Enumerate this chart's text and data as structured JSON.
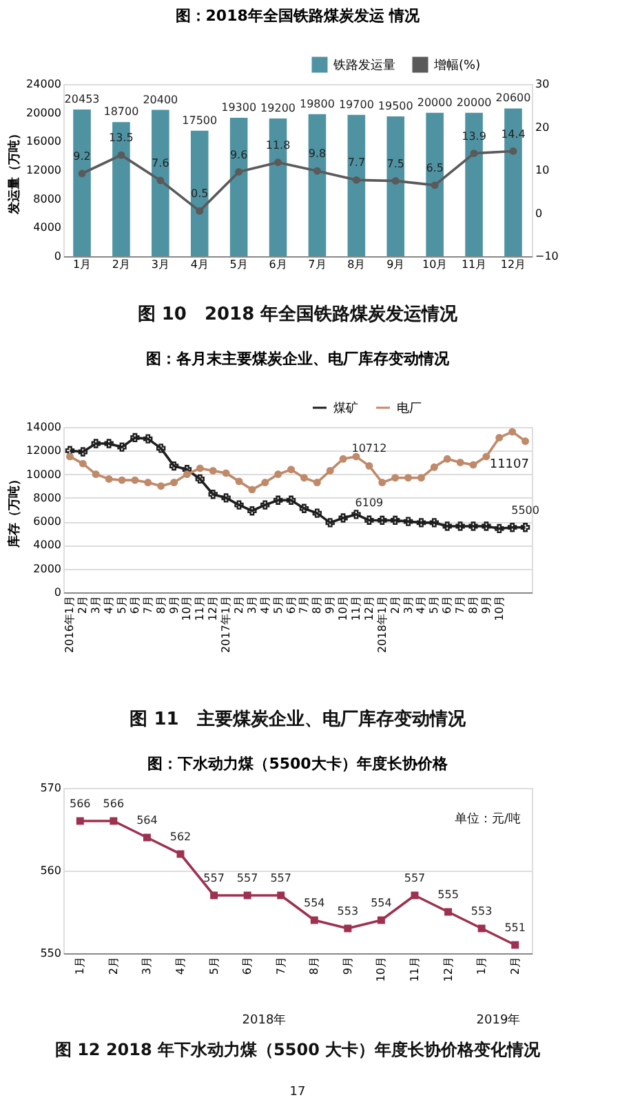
{
  "chart_data": [
    {
      "type": "bar",
      "title": "图：2018年全国铁路煤炭发运 情况",
      "categories": [
        "1月",
        "2月",
        "3月",
        "4月",
        "5月",
        "6月",
        "7月",
        "8月",
        "9月",
        "10月",
        "11月",
        "12月"
      ],
      "ylabel": "发运量（万吨）",
      "ylim": [
        0,
        24000
      ],
      "yticks": [
        0,
        4000,
        8000,
        12000,
        16000,
        20000,
        24000
      ],
      "y2lim": [
        -10,
        30
      ],
      "y2ticks": [
        -10,
        0,
        10,
        20,
        30
      ],
      "legend": "top right",
      "data_labels": true,
      "series": [
        {
          "name": "铁路发运量",
          "type": "bar",
          "color": "#4f93a3",
          "values": [
            20453,
            18700,
            20400,
            17500,
            19300,
            19200,
            19800,
            19700,
            19500,
            20000,
            20000,
            20600
          ]
        },
        {
          "name": "增幅(%)",
          "type": "line",
          "axis": "y2",
          "color": "#5a5a5a",
          "marker": "circle",
          "values": [
            9.2,
            13.5,
            7.6,
            0.5,
            9.6,
            11.8,
            9.8,
            7.7,
            7.5,
            6.5,
            13.9,
            14.4
          ]
        }
      ],
      "annotations": [
        "图 10　2018 年全国铁路煤炭发运情况"
      ]
    },
    {
      "type": "line",
      "title": "图：各月末主要煤炭企业、电厂库存变动情况",
      "categories": [
        "2016年1月",
        "2月",
        "3月",
        "4月",
        "5月",
        "6月",
        "7月",
        "8月",
        "9月",
        "10月",
        "11月",
        "12月",
        "2017年1月",
        "2月",
        "3月",
        "4月",
        "5月",
        "6月",
        "7月",
        "8月",
        "9月",
        "10月",
        "11月",
        "12月",
        "2018年1月",
        "2月",
        "3月",
        "4月",
        "5月",
        "6月",
        "7月",
        "8月",
        "9月",
        "10月",
        null,
        null
      ],
      "ylabel": "库存（万吨）",
      "ylim": [
        0,
        14000
      ],
      "yticks": [
        0,
        2000,
        4000,
        6000,
        8000,
        10000,
        12000,
        14000
      ],
      "grid": "y",
      "legend": "top right",
      "series": [
        {
          "name": "煤矿",
          "color": "#1e1e1e",
          "marker": "cross",
          "values": [
            12000,
            11900,
            12600,
            12600,
            12300,
            13100,
            13000,
            12200,
            10700,
            10400,
            9600,
            8300,
            8000,
            7400,
            6900,
            7400,
            7800,
            7800,
            7100,
            6700,
            5900,
            6300,
            6600,
            6109,
            6100,
            6100,
            6000,
            5900,
            5900,
            5600,
            5600,
            5600,
            5600,
            5400,
            5500,
            5500
          ],
          "value_labels": [
            null,
            null,
            null,
            null,
            null,
            null,
            null,
            null,
            null,
            null,
            null,
            null,
            null,
            null,
            null,
            null,
            null,
            null,
            null,
            null,
            null,
            null,
            null,
            "6109",
            null,
            null,
            null,
            null,
            null,
            null,
            null,
            null,
            null,
            null,
            null,
            "5500"
          ]
        },
        {
          "name": "电厂",
          "color": "#c08a6a",
          "marker": "circle",
          "values": [
            11500,
            10900,
            10000,
            9600,
            9500,
            9500,
            9300,
            9000,
            9300,
            10000,
            10500,
            10300,
            10100,
            9400,
            8700,
            9300,
            10000,
            10400,
            9700,
            9300,
            10300,
            11300,
            11500,
            10712,
            9300,
            9700,
            9700,
            9700,
            10600,
            11300,
            11000,
            10800,
            11500,
            13100,
            13600,
            12800
          ],
          "value_labels": [
            null,
            null,
            null,
            null,
            null,
            null,
            null,
            null,
            null,
            null,
            null,
            null,
            null,
            null,
            null,
            null,
            null,
            null,
            null,
            null,
            null,
            null,
            null,
            "10712",
            null,
            null,
            null,
            null,
            null,
            null,
            null,
            null,
            null,
            null,
            null,
            null
          ]
        }
      ],
      "annotations": [
        "11107",
        "图 11　主要煤炭企业、电厂库存变动情况"
      ]
    },
    {
      "type": "line",
      "title": "图：下水动力煤（5500大卡）年度长协价格",
      "categories": [
        "1月",
        "2月",
        "3月",
        "4月",
        "5月",
        "6月",
        "7月",
        "8月",
        "9月",
        "10月",
        "11月",
        "12月",
        "1月",
        "2月"
      ],
      "ylim": [
        550,
        570
      ],
      "yticks": [
        550,
        560,
        570
      ],
      "grid": "y",
      "data_labels": true,
      "marker": "square",
      "series": [
        {
          "color": "#9e3050",
          "values": [
            566,
            566,
            564,
            562,
            557,
            557,
            557,
            554,
            553,
            554,
            557,
            555,
            553,
            551
          ]
        }
      ],
      "annotations": [
        "单位：元/吨",
        "2018年",
        "2019年",
        "图 12 2018 年下水动力煤（5500 大卡）年度长协价格变化情况",
        "17"
      ]
    }
  ]
}
